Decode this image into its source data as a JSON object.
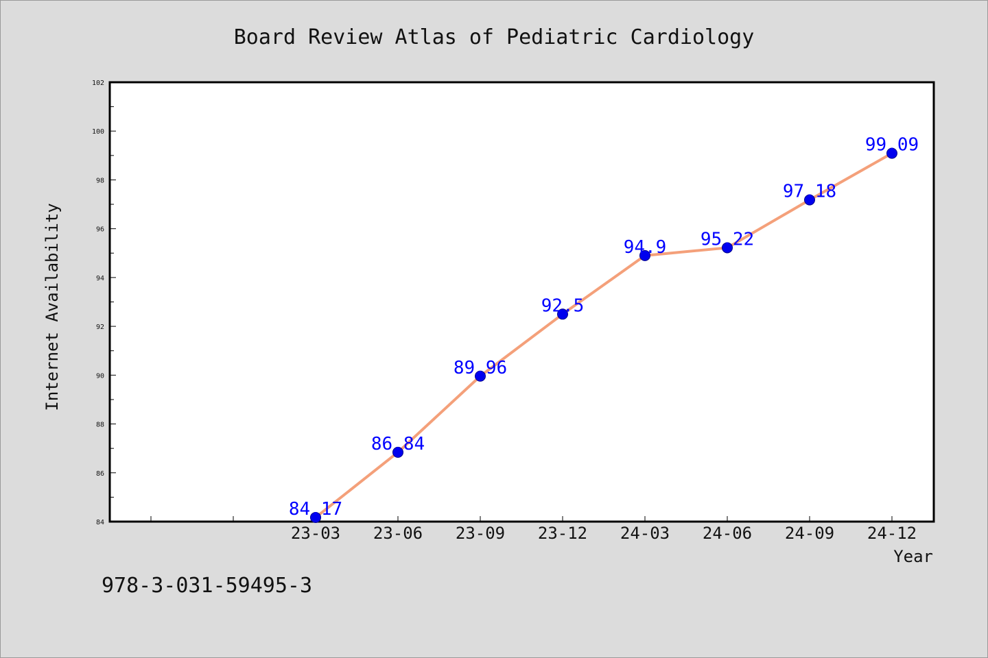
{
  "chart_data": {
    "type": "line",
    "title": "Board Review Atlas of Pediatric Cardiology",
    "xlabel": "Year",
    "ylabel": "Internet Availability",
    "categories": [
      "23-03",
      "23-06",
      "23-09",
      "23-12",
      "24-03",
      "24-06",
      "24-09",
      "24-12"
    ],
    "series": [
      {
        "values": [
          84.17,
          86.84,
          89.96,
          92.5,
          94.9,
          95.22,
          97.18,
          99.09
        ]
      }
    ],
    "data_labels": [
      "84.17",
      "86.84",
      "89.96",
      "92.5",
      "94.9",
      "95.22",
      "97.18",
      "99.09"
    ],
    "ylim": [
      84,
      102
    ],
    "y_ticks": [
      "84",
      "86",
      "88",
      "90",
      "92",
      "94",
      "96",
      "98",
      "100",
      "102"
    ],
    "grid": false,
    "legend": "none",
    "colors": {
      "line": "#f4a07a",
      "marker": "#0000ee",
      "label": "#0000ff",
      "plot_bg": "#ffffff",
      "page_bg": "#dcdcdc"
    }
  },
  "footer_text": "978-3-031-59495-3"
}
